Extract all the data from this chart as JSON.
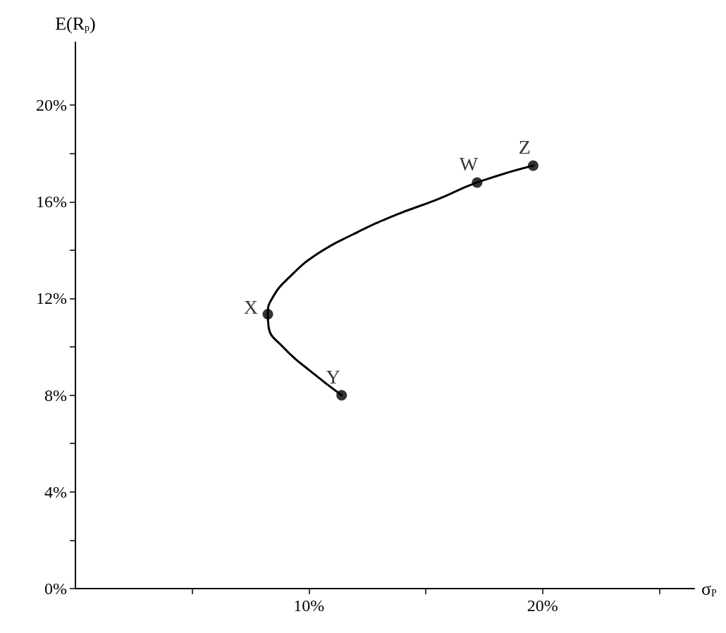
{
  "chart_data": {
    "type": "line",
    "xlabel": "σ$_{P}$",
    "ylabel": "E(R$_{p}$)",
    "xlim": [
      0,
      26.5
    ],
    "ylim": [
      0,
      22.6
    ],
    "xticks": [
      {
        "value": 5,
        "label": null
      },
      {
        "value": 10,
        "label": "10%"
      },
      {
        "value": 15,
        "label": null
      },
      {
        "value": 20,
        "label": "20%"
      },
      {
        "value": 25,
        "label": null
      }
    ],
    "yticks": [
      {
        "value": 0,
        "label": "0%"
      },
      {
        "value": 2,
        "label": null
      },
      {
        "value": 4,
        "label": "4%"
      },
      {
        "value": 6,
        "label": null
      },
      {
        "value": 8,
        "label": "8%"
      },
      {
        "value": 10,
        "label": null
      },
      {
        "value": 12,
        "label": "12%"
      },
      {
        "value": 14,
        "label": null
      },
      {
        "value": 16,
        "label": "16%"
      },
      {
        "value": 18,
        "label": null
      },
      {
        "value": 20,
        "label": "20%"
      }
    ],
    "grid": false,
    "series": [
      {
        "color": "#000000",
        "line_style": "solid",
        "marker": "none",
        "x": [
          11.4,
          10.06,
          8.88,
          8.27,
          8.24,
          8.42,
          9.18,
          10.4,
          11.9,
          13.7,
          15.5,
          17.2,
          19.6
        ],
        "values": [
          8.0,
          9.0,
          10.0,
          10.85,
          11.35,
          12.0,
          12.9,
          13.87,
          14.66,
          15.45,
          16.1,
          16.8,
          17.5
        ]
      },
      {
        "type": "scatter",
        "color": "#000000",
        "marker": "circle",
        "x": [
          8.24,
          11.4,
          17.2,
          19.6
        ],
        "values": [
          11.35,
          8.0,
          16.8,
          17.5
        ]
      }
    ],
    "annotations": [
      {
        "text": "X",
        "x": 8.24,
        "y": 11.35
      },
      {
        "text": "Y",
        "x": 11.4,
        "y": 8.0
      },
      {
        "text": "W",
        "x": 17.2,
        "y": 16.8
      },
      {
        "text": "Z",
        "x": 19.6,
        "y": 17.5
      }
    ]
  }
}
